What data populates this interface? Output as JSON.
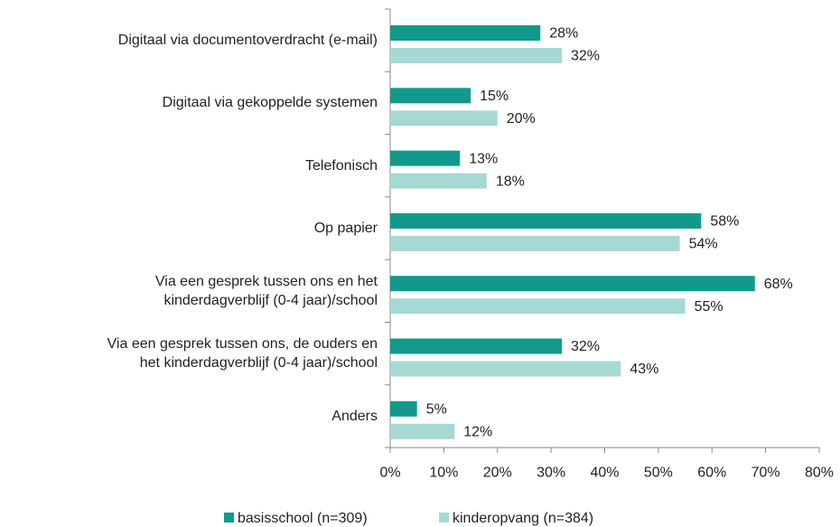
{
  "chart_data": {
    "type": "bar",
    "orientation": "horizontal",
    "categories": [
      "Digitaal via documentoverdracht (e-mail)",
      "Digitaal via gekoppelde systemen",
      "Telefonisch",
      "Op papier",
      "Via een gesprek tussen ons en het\nkinderdagverblijf (0-4 jaar)/school",
      "Via een gesprek tussen ons, de ouders en\nhet kinderdagverblijf (0-4 jaar)/school",
      "Anders"
    ],
    "series": [
      {
        "name": "basisschool (n=309)",
        "color": "#12998b",
        "values": [
          28,
          15,
          13,
          58,
          68,
          32,
          5
        ],
        "value_labels": [
          "28%",
          "15%",
          "13%",
          "58%",
          "68%",
          "32%",
          "5%"
        ]
      },
      {
        "name": "kinderopvang (n=384)",
        "color": "#a6d9d4",
        "values": [
          32,
          20,
          18,
          54,
          55,
          43,
          12
        ],
        "value_labels": [
          "32%",
          "20%",
          "18%",
          "54%",
          "55%",
          "43%",
          "12%"
        ]
      }
    ],
    "xlim": [
      0,
      80
    ],
    "xticks": [
      {
        "value": 0,
        "label": "0%"
      },
      {
        "value": 10,
        "label": "10%"
      },
      {
        "value": 20,
        "label": "20%"
      },
      {
        "value": 30,
        "label": "30%"
      },
      {
        "value": 40,
        "label": "40%"
      },
      {
        "value": 50,
        "label": "50%"
      },
      {
        "value": 60,
        "label": "60%"
      },
      {
        "value": 70,
        "label": "70%"
      },
      {
        "value": 80,
        "label": "80%"
      }
    ],
    "legend": "bottom"
  }
}
